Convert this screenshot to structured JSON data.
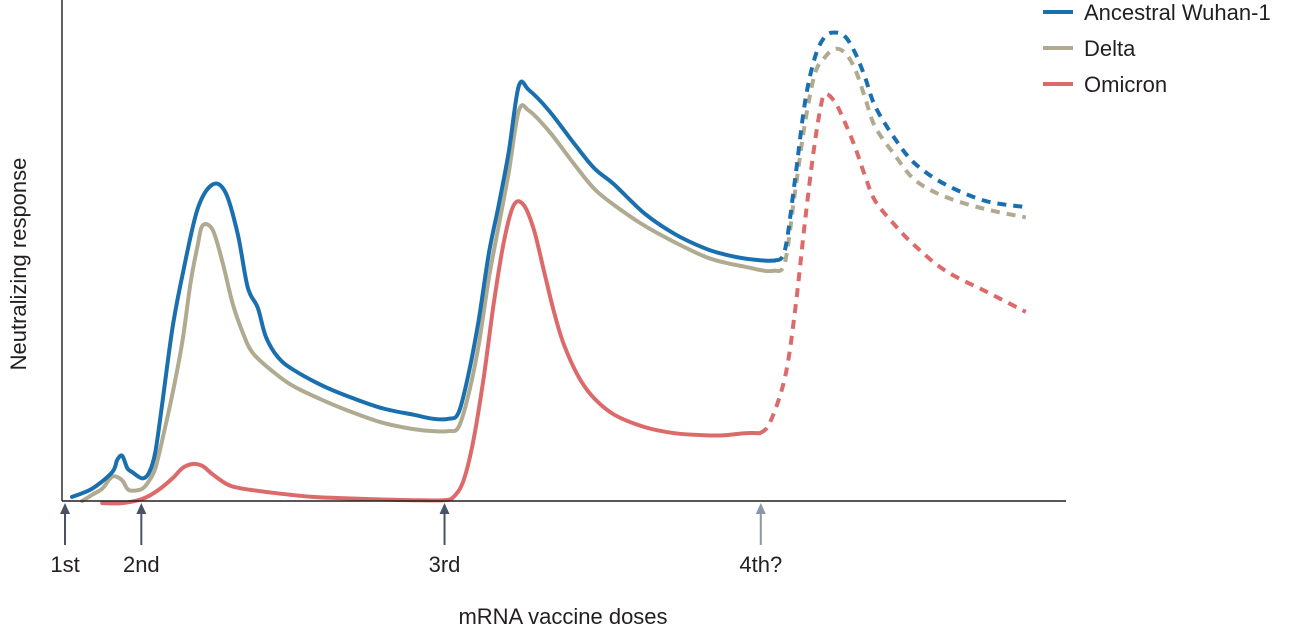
{
  "chart_data": {
    "type": "line",
    "title": "",
    "xlabel": "mRNA vaccine doses",
    "ylabel": "Neutralizing response",
    "xlim": [
      0,
      100
    ],
    "ylim": [
      0,
      100
    ],
    "grid": false,
    "legend": {
      "position": "top-right",
      "entries": [
        "Ancestral Wuhan-1",
        "Delta",
        "Omicron"
      ]
    },
    "doses": [
      {
        "label": "1st",
        "x": 0.3,
        "color": "#4a5266"
      },
      {
        "label": "2nd",
        "x": 7.9,
        "color": "#4a5266"
      },
      {
        "label": "3rd",
        "x": 38.1,
        "color": "#4a5266"
      },
      {
        "label": "4th?",
        "x": 69.6,
        "color": "#8c97ad"
      }
    ],
    "series": [
      {
        "name": "Ancestral Wuhan-1",
        "color": "#1a6fae",
        "values": [
          [
            1,
            1
          ],
          [
            3,
            3
          ],
          [
            5,
            7
          ],
          [
            5.5,
            10
          ],
          [
            6,
            11
          ],
          [
            6.5,
            8
          ],
          [
            7,
            7
          ],
          [
            8,
            5.5
          ],
          [
            8.7,
            7
          ],
          [
            9.3,
            12
          ],
          [
            10,
            24
          ],
          [
            11,
            42
          ],
          [
            12,
            55
          ],
          [
            13.5,
            71
          ],
          [
            15,
            77
          ],
          [
            16.3,
            75
          ],
          [
            17.5,
            65
          ],
          [
            18.5,
            52
          ],
          [
            19.5,
            47
          ],
          [
            20.3,
            40
          ],
          [
            21.5,
            35
          ],
          [
            23,
            32
          ],
          [
            26,
            28
          ],
          [
            29,
            25
          ],
          [
            32,
            22.5
          ],
          [
            35,
            21
          ],
          [
            37,
            20
          ],
          [
            38.5,
            20
          ],
          [
            39.5,
            21.5
          ],
          [
            40.5,
            31
          ],
          [
            41.5,
            44
          ],
          [
            42.5,
            60
          ],
          [
            43.5,
            72
          ],
          [
            44.5,
            85
          ],
          [
            45.5,
            101
          ],
          [
            46.5,
            100
          ],
          [
            48.5,
            95
          ],
          [
            51,
            87
          ],
          [
            53,
            81
          ],
          [
            55,
            77
          ],
          [
            58,
            70
          ],
          [
            61,
            65
          ],
          [
            64,
            61.5
          ],
          [
            66,
            60
          ],
          [
            68,
            59
          ],
          [
            70,
            58.5
          ],
          [
            71,
            58.5
          ]
        ],
        "projected": [
          [
            71,
            58.5
          ],
          [
            72,
            61
          ],
          [
            73,
            78
          ],
          [
            74,
            97
          ],
          [
            75,
            108
          ],
          [
            76,
            113
          ],
          [
            77,
            114
          ],
          [
            78,
            113
          ],
          [
            79,
            109
          ],
          [
            80,
            103
          ],
          [
            81,
            96
          ],
          [
            83,
            88
          ],
          [
            85,
            82
          ],
          [
            88,
            77
          ],
          [
            92,
            73
          ],
          [
            96,
            71.5
          ]
        ]
      },
      {
        "name": "Delta",
        "color": "#afaa90",
        "values": [
          [
            2,
            0
          ],
          [
            3,
            1.5
          ],
          [
            4,
            3
          ],
          [
            4.8,
            5.5
          ],
          [
            5.3,
            6
          ],
          [
            6,
            5
          ],
          [
            6.5,
            3
          ],
          [
            7,
            2.5
          ],
          [
            8,
            3
          ],
          [
            8.7,
            5
          ],
          [
            9.3,
            8
          ],
          [
            10,
            15
          ],
          [
            11,
            26
          ],
          [
            12,
            39
          ],
          [
            12.8,
            53
          ],
          [
            13.5,
            62
          ],
          [
            14,
            67
          ],
          [
            15,
            66
          ],
          [
            16,
            58
          ],
          [
            17,
            48
          ],
          [
            18,
            41
          ],
          [
            19,
            36
          ],
          [
            21,
            31.5
          ],
          [
            23,
            28
          ],
          [
            26,
            24.5
          ],
          [
            29,
            21.5
          ],
          [
            32,
            19
          ],
          [
            35,
            17.5
          ],
          [
            37,
            17
          ],
          [
            38.5,
            17
          ],
          [
            39.5,
            18
          ],
          [
            40.5,
            26
          ],
          [
            41.5,
            38
          ],
          [
            42.5,
            54
          ],
          [
            43.5,
            67
          ],
          [
            44.5,
            80
          ],
          [
            45.5,
            95
          ],
          [
            46.5,
            95
          ],
          [
            48.5,
            90
          ],
          [
            51,
            82
          ],
          [
            53,
            76
          ],
          [
            55,
            72
          ],
          [
            58,
            67
          ],
          [
            61,
            63
          ],
          [
            64,
            59.5
          ],
          [
            66,
            58
          ],
          [
            68,
            57
          ],
          [
            70,
            56
          ],
          [
            71,
            56
          ]
        ],
        "projected": [
          [
            71,
            56
          ],
          [
            72,
            58
          ],
          [
            73,
            75
          ],
          [
            74,
            92
          ],
          [
            75,
            104
          ],
          [
            76,
            108
          ],
          [
            77,
            110
          ],
          [
            78,
            109
          ],
          [
            79,
            105
          ],
          [
            80,
            98
          ],
          [
            81,
            91
          ],
          [
            83,
            84
          ],
          [
            85,
            78
          ],
          [
            88,
            74
          ],
          [
            92,
            71
          ],
          [
            96,
            69
          ]
        ]
      },
      {
        "name": "Omicron",
        "color": "#dd6a6b",
        "values": [
          [
            4,
            -0.5
          ],
          [
            6,
            -0.5
          ],
          [
            8,
            0.5
          ],
          [
            9.5,
            2.5
          ],
          [
            11,
            5.5
          ],
          [
            12,
            8
          ],
          [
            13,
            9
          ],
          [
            14,
            8.5
          ],
          [
            15,
            6.5
          ],
          [
            16.5,
            4
          ],
          [
            18,
            3
          ],
          [
            21,
            2
          ],
          [
            25,
            1
          ],
          [
            30,
            0.5
          ],
          [
            35,
            0.2
          ],
          [
            38,
            0.2
          ],
          [
            39,
            1
          ],
          [
            40,
            5
          ],
          [
            41,
            15
          ],
          [
            42,
            30
          ],
          [
            43,
            48
          ],
          [
            44,
            63
          ],
          [
            45,
            72
          ],
          [
            46,
            72
          ],
          [
            47,
            66
          ],
          [
            48,
            56
          ],
          [
            49,
            46
          ],
          [
            50,
            38
          ],
          [
            51.5,
            30
          ],
          [
            53,
            25
          ],
          [
            55,
            21
          ],
          [
            58,
            18
          ],
          [
            61,
            16.5
          ],
          [
            64,
            16
          ],
          [
            66,
            16
          ],
          [
            68,
            16.5
          ],
          [
            69.5,
            16.5
          ]
        ],
        "projected": [
          [
            69.5,
            16.5
          ],
          [
            70.5,
            19
          ],
          [
            72,
            30
          ],
          [
            73,
            46
          ],
          [
            74,
            68
          ],
          [
            74.8,
            84
          ],
          [
            75.5,
            95
          ],
          [
            76,
            99
          ],
          [
            77,
            97
          ],
          [
            78,
            92
          ],
          [
            79,
            86
          ],
          [
            80,
            79
          ],
          [
            81,
            73
          ],
          [
            83,
            67
          ],
          [
            85,
            62
          ],
          [
            88,
            56
          ],
          [
            92,
            51
          ],
          [
            96,
            46
          ]
        ]
      }
    ]
  }
}
